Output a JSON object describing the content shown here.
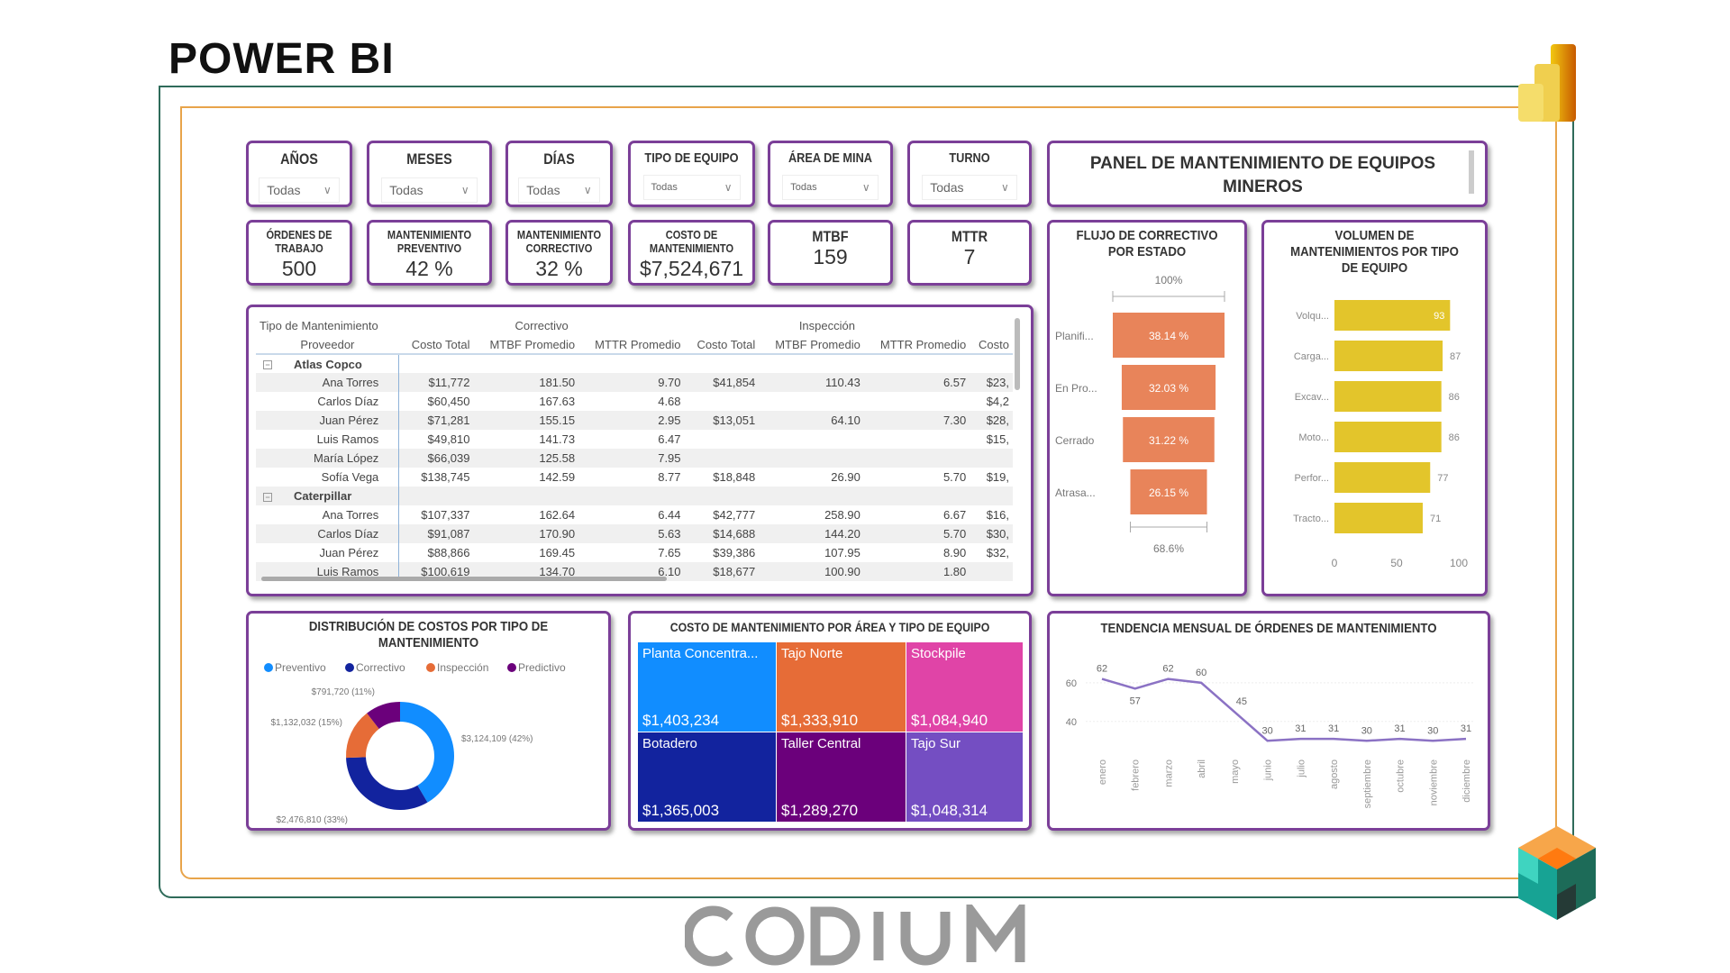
{
  "page_title": "POWER BI",
  "watermark": "CODIUM",
  "colors": {
    "panel_border": "#7b3f98",
    "frame_green": "#2f6b5a",
    "frame_orange": "#e8a44a",
    "funnel": "#e8845a",
    "bar": "#e3c52b",
    "line": "#8b72c4"
  },
  "slicers": [
    {
      "label": "AÑOS",
      "value": "Todas"
    },
    {
      "label": "MESES",
      "value": "Todas"
    },
    {
      "label": "DÍAS",
      "value": "Todas"
    },
    {
      "label": "TIPO DE EQUIPO",
      "value": "Todas"
    },
    {
      "label": "ÁREA DE MINA",
      "value": "Todas"
    },
    {
      "label": "TURNO",
      "value": "Todas"
    }
  ],
  "dashboard_title": "PANEL DE MANTENIMIENTO DE EQUIPOS MINEROS",
  "kpis": [
    {
      "label": "ÓRDENES DE TRABAJO",
      "value": "500"
    },
    {
      "label": "MANTENIMIENTO PREVENTIVO",
      "value": "42 %"
    },
    {
      "label": "MANTENIMIENTO CORRECTIVO",
      "value": "32 %"
    },
    {
      "label": "COSTO DE MANTENIMIENTO",
      "value": "$7,524,671"
    },
    {
      "label": "MTBF",
      "value": "159"
    },
    {
      "label": "MTTR",
      "value": "7"
    }
  ],
  "matrix": {
    "row_header_1": "Tipo de Mantenimiento",
    "row_header_2": "Proveedor",
    "groups": [
      "Correctivo",
      "Inspección"
    ],
    "columns": [
      "Costo Total",
      "MTBF Promedio",
      "MTTR Promedio",
      "Costo Total",
      "MTBF Promedio",
      "MTTR Promedio",
      "Costo"
    ],
    "rows": [
      {
        "type": "group",
        "name": "Atlas Copco",
        "cells": [
          "",
          "",
          "",
          "",
          "",
          "",
          ""
        ]
      },
      {
        "type": "row",
        "name": "Ana Torres",
        "cells": [
          "$11,772",
          "181.50",
          "9.70",
          "$41,854",
          "110.43",
          "6.57",
          "$23,"
        ]
      },
      {
        "type": "row",
        "name": "Carlos Díaz",
        "cells": [
          "$60,450",
          "167.63",
          "4.68",
          "",
          "",
          "",
          "$4,2"
        ]
      },
      {
        "type": "row",
        "name": "Juan Pérez",
        "cells": [
          "$71,281",
          "155.15",
          "2.95",
          "$13,051",
          "64.10",
          "7.30",
          "$28,"
        ]
      },
      {
        "type": "row",
        "name": "Luis Ramos",
        "cells": [
          "$49,810",
          "141.73",
          "6.47",
          "",
          "",
          "",
          "$15,"
        ]
      },
      {
        "type": "row",
        "name": "María López",
        "cells": [
          "$66,039",
          "125.58",
          "7.95",
          "",
          "",
          "",
          ""
        ]
      },
      {
        "type": "row",
        "name": "Sofía Vega",
        "cells": [
          "$138,745",
          "142.59",
          "8.77",
          "$18,848",
          "26.90",
          "5.70",
          "$19,"
        ]
      },
      {
        "type": "group",
        "name": "Caterpillar",
        "cells": [
          "",
          "",
          "",
          "",
          "",
          "",
          ""
        ]
      },
      {
        "type": "row",
        "name": "Ana Torres",
        "cells": [
          "$107,337",
          "162.64",
          "6.44",
          "$42,777",
          "258.90",
          "6.67",
          "$16,"
        ]
      },
      {
        "type": "row",
        "name": "Carlos Díaz",
        "cells": [
          "$91,087",
          "170.90",
          "5.63",
          "$14,688",
          "144.20",
          "5.70",
          "$30,"
        ]
      },
      {
        "type": "row",
        "name": "Juan Pérez",
        "cells": [
          "$88,866",
          "169.45",
          "7.65",
          "$39,386",
          "107.95",
          "8.90",
          "$32,"
        ]
      },
      {
        "type": "row",
        "name": "Luis Ramos",
        "cells": [
          "$100,619",
          "134.70",
          "6.10",
          "$18,677",
          "100.90",
          "1.80",
          ""
        ]
      }
    ]
  },
  "chart_data": [
    {
      "type": "funnel",
      "title": "FLUJO DE CORRECTIVO POR ESTADO",
      "categories": [
        "Planifi...",
        "En Pro...",
        "Cerrado",
        "Atrasa..."
      ],
      "values": [
        38.14,
        32.03,
        31.22,
        26.15
      ],
      "data_labels": [
        "38.14 %",
        "32.03 %",
        "31.22 %",
        "26.15 %"
      ],
      "top_label": "100%",
      "bottom_label": "68.6%",
      "color": "#e8845a"
    },
    {
      "type": "bar",
      "orientation": "horizontal",
      "title": "VOLUMEN DE MANTENIMIENTOS POR TIPO DE EQUIPO",
      "categories": [
        "Volqu...",
        "Carga...",
        "Excav...",
        "Moto...",
        "Perfor...",
        "Tracto..."
      ],
      "values": [
        93,
        87,
        86,
        86,
        77,
        71
      ],
      "xlim": [
        0,
        100
      ],
      "xticks": [
        "0",
        "50",
        "100"
      ],
      "color": "#e3c52b"
    },
    {
      "type": "pie",
      "donut": true,
      "title": "DISTRIBUCIÓN DE COSTOS POR TIPO DE MANTENIMIENTO",
      "legend_position": "top",
      "series": [
        {
          "name": "Preventivo",
          "value": 3124109,
          "label": "$3,124,109 (42%)",
          "color": "#118dff"
        },
        {
          "name": "Correctivo",
          "value": 2476810,
          "label": "$2,476,810 (33%)",
          "color": "#12239e"
        },
        {
          "name": "Inspección",
          "value": 1132032,
          "label": "$1,132,032 (15%)",
          "color": "#e66c37"
        },
        {
          "name": "Predictivo",
          "value": 791720,
          "label": "$791,720 (11%)",
          "color": "#6b007b"
        }
      ]
    },
    {
      "type": "treemap",
      "title": "COSTO DE MANTENIMIENTO POR ÁREA Y TIPO DE EQUIPO",
      "items": [
        {
          "name": "Planta Concentra...",
          "value": "$1,403,234",
          "color": "#118dff"
        },
        {
          "name": "Tajo Norte",
          "value": "$1,333,910",
          "color": "#e66c37"
        },
        {
          "name": "Stockpile",
          "value": "$1,084,940",
          "color": "#e044a7"
        },
        {
          "name": "Botadero",
          "value": "$1,365,003",
          "color": "#12239e"
        },
        {
          "name": "Taller Central",
          "value": "$1,289,270",
          "color": "#6b007b"
        },
        {
          "name": "Tajo Sur",
          "value": "$1,048,314",
          "color": "#744ec2"
        }
      ]
    },
    {
      "type": "line",
      "title": "TENDENCIA MENSUAL DE ÓRDENES DE MANTENIMIENTO",
      "categories": [
        "enero",
        "febrero",
        "marzo",
        "abril",
        "mayo",
        "junio",
        "julio",
        "agosto",
        "septiembre",
        "octubre",
        "noviembre",
        "diciembre"
      ],
      "values": [
        62,
        57,
        62,
        60,
        45,
        30,
        31,
        31,
        30,
        31,
        30,
        31
      ],
      "yticks": [
        "40",
        "60"
      ],
      "ylim": [
        25,
        66
      ],
      "grid": true,
      "color": "#8b72c4"
    }
  ]
}
